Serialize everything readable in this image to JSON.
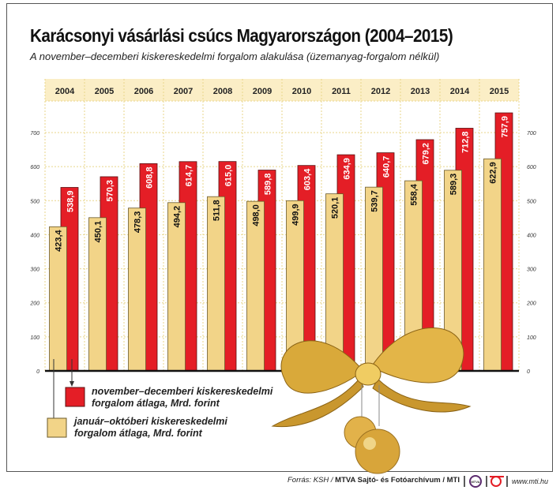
{
  "chart_data": {
    "type": "bar",
    "title": "Karácsonyi vásárlási csúcs Magyarországon (2004–2015)",
    "subtitle": "A november–decemberi kiskereskedelmi forgalom alakulása (üzemanyag-forgalom nélkül)",
    "categories": [
      "2004",
      "2005",
      "2006",
      "2007",
      "2008",
      "2009",
      "2010",
      "2011",
      "2012",
      "2013",
      "2014",
      "2015"
    ],
    "series": [
      {
        "name": "január–októberi kiskereskedelmi forgalom átlaga, Mrd. forint",
        "color": "#f2d488",
        "values": [
          423.4,
          450.1,
          478.3,
          494.2,
          511.8,
          498.0,
          499.9,
          520.1,
          539.7,
          558.4,
          589.3,
          622.9
        ],
        "labels": [
          "423,4",
          "450,1",
          "478,3",
          "494,2",
          "511,8",
          "498,0",
          "499,9",
          "520,1",
          "539,7",
          "558,4",
          "589,3",
          "622,9"
        ]
      },
      {
        "name": "november–decemberi kiskereskedelmi forgalom átlaga, Mrd. forint",
        "color": "#e41e26",
        "values": [
          538.9,
          570.3,
          608.8,
          614.7,
          615.0,
          589.8,
          603.4,
          634.9,
          640.7,
          679.2,
          712.8,
          757.9
        ],
        "labels": [
          "538,9",
          "570,3",
          "608,8",
          "614,7",
          "615,0",
          "589,8",
          "603,4",
          "634,9",
          "640,7",
          "679,2",
          "712,8",
          "757,9"
        ]
      }
    ],
    "yticks": [
      0,
      100,
      200,
      300,
      400,
      500,
      600,
      700
    ],
    "ylim": [
      0,
      800
    ],
    "grid": true,
    "legend_position": "bottom-left"
  },
  "legend": {
    "red_line1": "november–decemberi kiskereskedelmi",
    "red_line2": "forgalom átlaga, Mrd. forint",
    "yellow_line1": "január–októberi kiskereskedelmi",
    "yellow_line2": "forgalom átlaga, Mrd. forint"
  },
  "footer": {
    "source_prefix": "Forrás: KSH / ",
    "source_bold": "MTVA Sajtó- és Fotóarchívum / MTI",
    "logo1": "MTVA",
    "url": "www.mti.hu"
  }
}
